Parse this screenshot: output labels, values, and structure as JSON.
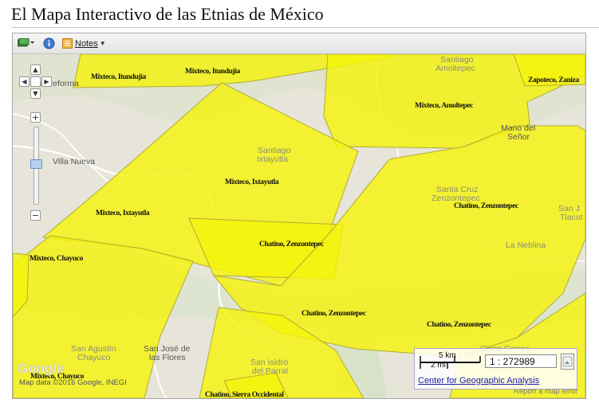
{
  "page": {
    "title": "El Mapa Interactivo de las Etnias de México"
  },
  "toolbar": {
    "layers_icon": "map-layers-icon",
    "info_icon": "info-icon",
    "notes_icon": "notes-icon",
    "notes_label": "Notes"
  },
  "map": {
    "place_labels": {
      "la_reforma": "La Reforma",
      "santiago_amoltepec_1": "Santiago",
      "santiago_amoltepec_2": "Amoltepec",
      "mano_del_senor_1": "Mano del",
      "mano_del_senor_2": "Señor",
      "villa_nueva": "Villa Nueva",
      "santiago_ixtayutla_1": "Santiago",
      "santiago_ixtayutla_2": "Ixtayutla",
      "santa_cruz_1": "Santa Cruz",
      "santa_cruz_2": "Zenzontepec",
      "san_j_tlacot_1": "San J",
      "san_j_tlacot_2": "Tlacot",
      "la_neblina": "La Neblina",
      "san_agustin_1": "San Agustín",
      "san_agustin_2": "Chayuco",
      "san_jose_1": "San José de",
      "san_jose_2": "las Flores",
      "san_isidro_1": "San Isidro",
      "san_isidro_2": "del Parral",
      "cinco_cerros": "Cinco Cerros"
    },
    "ethnic_labels": {
      "mixteco_itundujia_a": "Mixteco, Itundujia",
      "mixteco_itundujia_b": "Mixteco, Itundujia",
      "mixteco_amoltepec": "Mixteco, Amoltepec",
      "zapoteco_zaniza": "Zapoteco, Zaniza",
      "mixteco_ixtayutla_a": "Mixteco, Ixtayutla",
      "mixteco_ixtayutla_b": "Mixteco, Ixtayutla",
      "chatino_zenzontepec_a": "Chatino, Zenzontepec",
      "chatino_zenzontepec_b": "Chatino, Zenzontepec",
      "chatino_zenzontepec_c": "Chatino, Zenzontepec",
      "chatino_zenzontepec_d": "Chatino, Zenzontepec",
      "mixteco_chayuco_a": "Mixteco, Chayuco",
      "mixteco_chayuco_b": "Mixteco, Chayuco",
      "chatino_sierra_occidental": "Chatino, Sierra Occidental"
    },
    "google_logo": "Google",
    "attribution": "Map data ©2016 Google, INEGI",
    "report_error": "Report a map error"
  },
  "scale": {
    "km_label": "5 km",
    "mi_label": "2 mi",
    "ratio": "1 : 272989",
    "link": "Center for Geographic Analysis"
  },
  "colors": {
    "polygon_fill": "#f5f30c",
    "polygon_stroke": "#b0ad32",
    "terrain": "#e8e6dc"
  }
}
